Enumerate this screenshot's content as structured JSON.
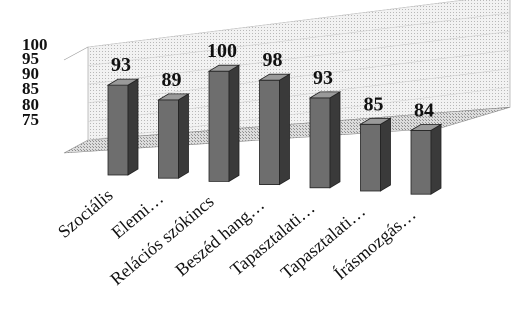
{
  "chart_data": {
    "type": "bar",
    "categories": [
      "Szociális",
      "Elemi…",
      "Relációs szókincs",
      "Beszéd hang…",
      "Tapasztalati…",
      "Tapasztalati…",
      "Írásmozgás…"
    ],
    "values": [
      93,
      89,
      100,
      98,
      93,
      85,
      84
    ],
    "data_labels": [
      "93",
      "89",
      "100",
      "98",
      "93",
      "85",
      "84"
    ],
    "yticks": [
      "100",
      "95",
      "90",
      "85",
      "80",
      "75"
    ],
    "ylim": [
      75,
      100
    ],
    "title": "",
    "xlabel": "",
    "ylabel": "",
    "grid": true,
    "legend": "none",
    "style": "3d-column",
    "colors": {
      "bar_front": "#6e6e6e",
      "bar_side": "#3a3a3a",
      "bar_top": "#9a9a9a",
      "wall": "#e6e6e6",
      "floor": "#c8c8c8"
    }
  }
}
